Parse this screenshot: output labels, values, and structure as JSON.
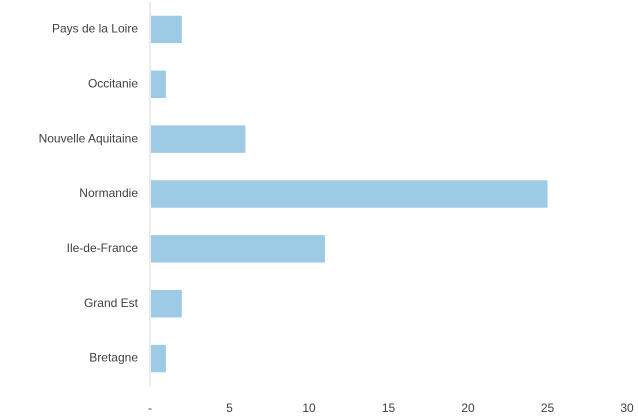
{
  "chart_data": {
    "type": "bar",
    "orientation": "horizontal",
    "title": "",
    "xlabel": "",
    "ylabel": "",
    "categories": [
      "Pays de la Loire",
      "Occitanie",
      "Nouvelle Aquitaine",
      "Normandie",
      "Ile-de-France",
      "Grand Est",
      "Bretagne"
    ],
    "values": [
      2,
      1,
      6,
      25,
      11,
      2,
      1
    ],
    "xlim": [
      0,
      30
    ],
    "x_ticks": [
      0,
      5,
      10,
      15,
      20,
      25,
      30
    ],
    "x_tick_labels": [
      "-",
      "5",
      "10",
      "15",
      "20",
      "25",
      "30"
    ],
    "grid": false,
    "legend": "none",
    "bar_color": "#9DCBE6",
    "axis_color": "#D9D9D9",
    "text_color": "#404040"
  }
}
